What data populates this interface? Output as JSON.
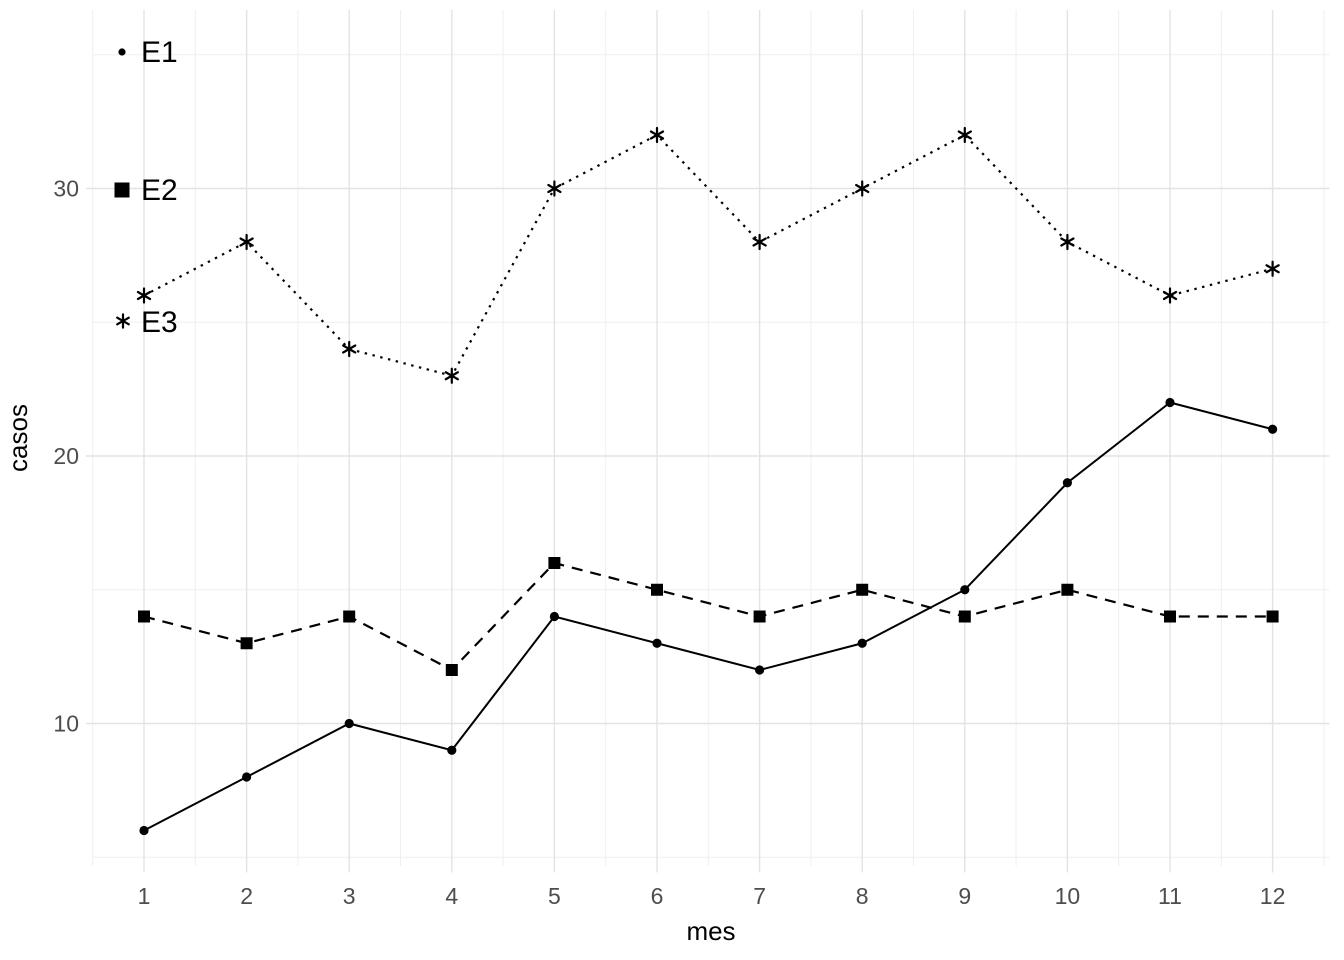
{
  "chart_data": {
    "type": "line",
    "title": "",
    "xlabel": "mes",
    "ylabel": "casos",
    "x": [
      1,
      2,
      3,
      4,
      5,
      6,
      7,
      8,
      9,
      10,
      11,
      12
    ],
    "xticks": [
      "1",
      "2",
      "3",
      "4",
      "5",
      "6",
      "7",
      "8",
      "9",
      "10",
      "11",
      "12"
    ],
    "yticks": [
      "10",
      "20",
      "30"
    ],
    "ytick_values": [
      10,
      20,
      30
    ],
    "yminor_values": [
      5,
      15,
      25,
      35
    ],
    "xminor_values": [
      0.5,
      1.5,
      2.5,
      3.5,
      4.5,
      5.5,
      6.5,
      7.5,
      8.5,
      9.5,
      10.5,
      11.5,
      12.5
    ],
    "xlim": [
      0.5,
      12.55
    ],
    "ylim": [
      4.7,
      36.6
    ],
    "grid": true,
    "legend_position": "inside-top-left",
    "series": [
      {
        "name": "E1",
        "marker": "circle",
        "line_style": "solid",
        "values": [
          6,
          8,
          10,
          9,
          14,
          13,
          12,
          13,
          15,
          19,
          22,
          21
        ]
      },
      {
        "name": "E2",
        "marker": "square",
        "line_style": "dashed",
        "values": [
          14,
          13,
          14,
          12,
          16,
          15,
          14,
          15,
          14,
          15,
          14,
          14
        ]
      },
      {
        "name": "E3",
        "marker": "asterisk",
        "line_style": "dotted",
        "values": [
          26,
          28,
          24,
          23,
          30,
          32,
          28,
          30,
          32,
          28,
          26,
          27
        ]
      }
    ],
    "colors": {
      "series": "#000000",
      "grid_major": "#e3e3e3",
      "grid_minor": "#efefef",
      "tick_label": "#4d4d4d",
      "axis_title": "#000000",
      "background": "#ffffff"
    }
  }
}
